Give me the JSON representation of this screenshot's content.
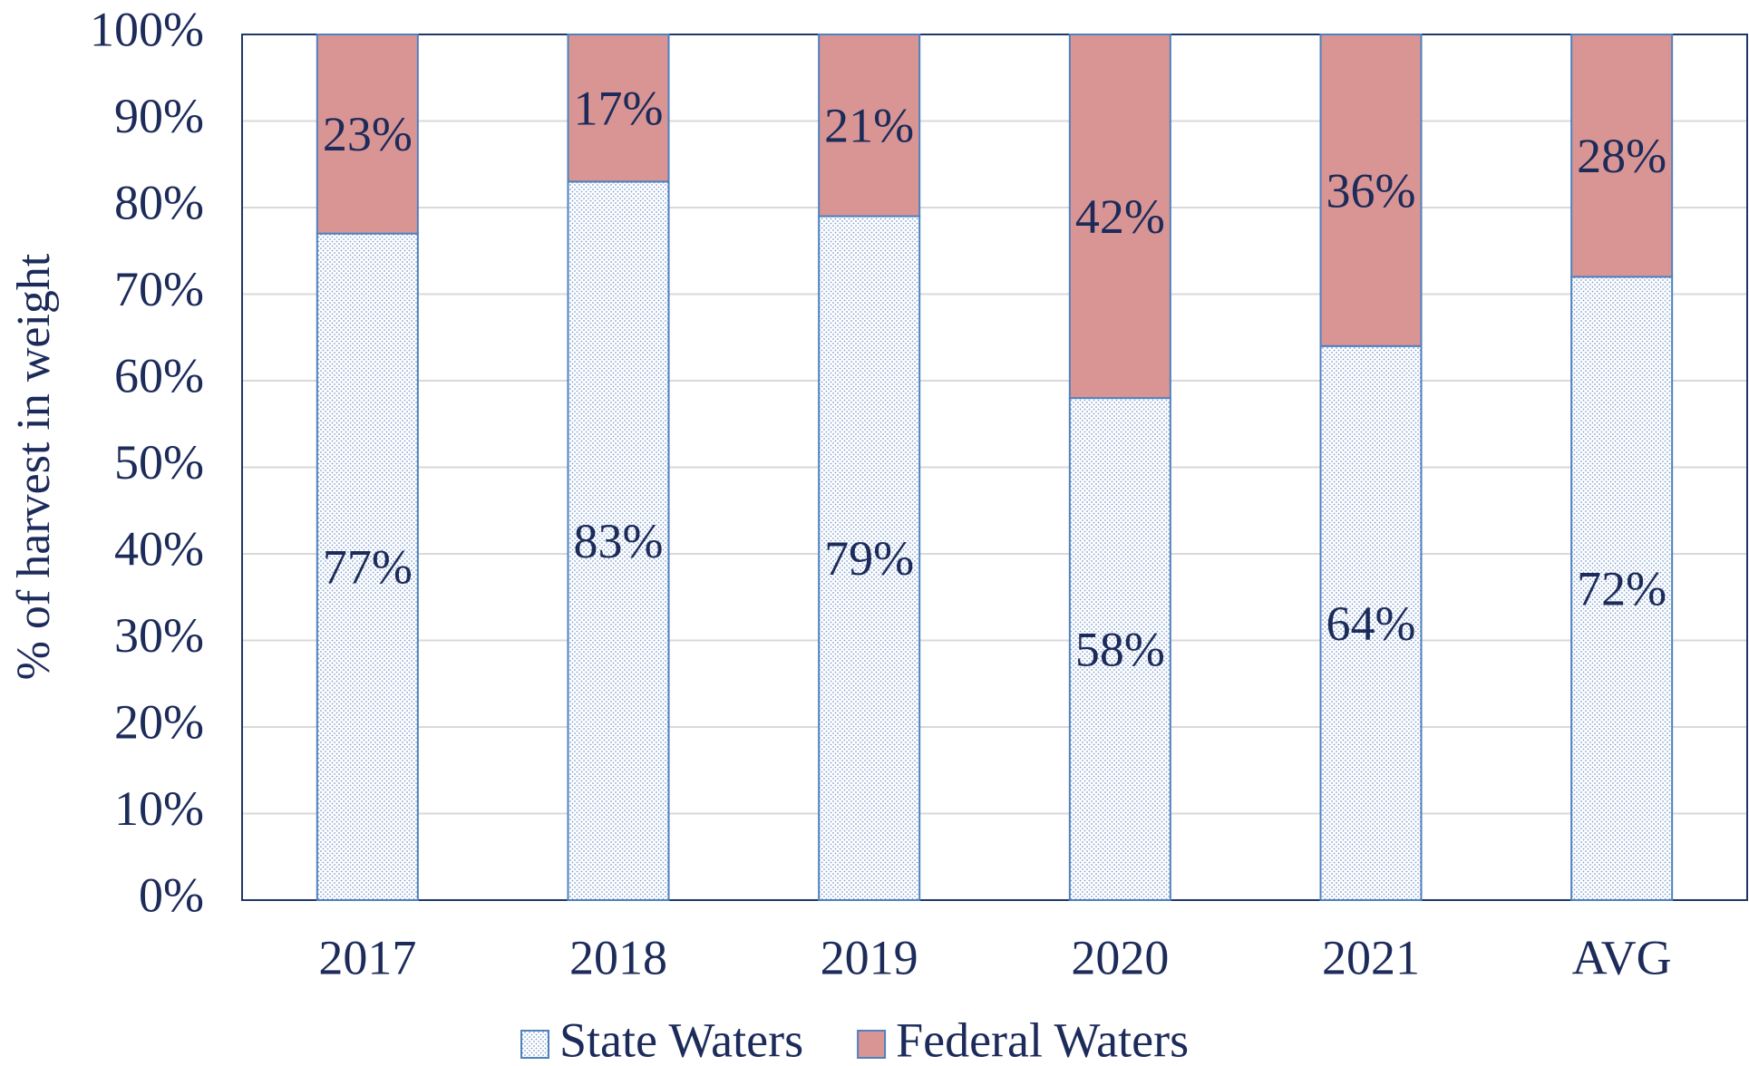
{
  "chart_data": {
    "type": "stacked_bar",
    "y_label": "% of harvest in weight",
    "categories": [
      "2017",
      "2018",
      "2019",
      "2020",
      "2021",
      "AVG"
    ],
    "series": [
      {
        "name": "State Waters",
        "color": "#dce6f2",
        "values": [
          77,
          83,
          79,
          58,
          64,
          72
        ],
        "value_labels": [
          "77%",
          "83%",
          "79%",
          "58%",
          "64%",
          "72%"
        ]
      },
      {
        "name": "Federal Waters",
        "color": "#d99594",
        "values": [
          23,
          17,
          21,
          42,
          36,
          28
        ],
        "value_labels": [
          "23%",
          "17%",
          "21%",
          "42%",
          "36%",
          "28%"
        ]
      }
    ],
    "ylim": [
      0,
      100
    ],
    "yticks": [
      {
        "value": 0,
        "label": "0%"
      },
      {
        "value": 10,
        "label": "10%"
      },
      {
        "value": 20,
        "label": "20%"
      },
      {
        "value": 30,
        "label": "30%"
      },
      {
        "value": 40,
        "label": "40%"
      },
      {
        "value": 50,
        "label": "50%"
      },
      {
        "value": 60,
        "label": "60%"
      },
      {
        "value": 70,
        "label": "70%"
      },
      {
        "value": 80,
        "label": "80%"
      },
      {
        "value": 90,
        "label": "90%"
      },
      {
        "value": 100,
        "label": "100%"
      }
    ],
    "grid": true,
    "legend": "bottom"
  }
}
